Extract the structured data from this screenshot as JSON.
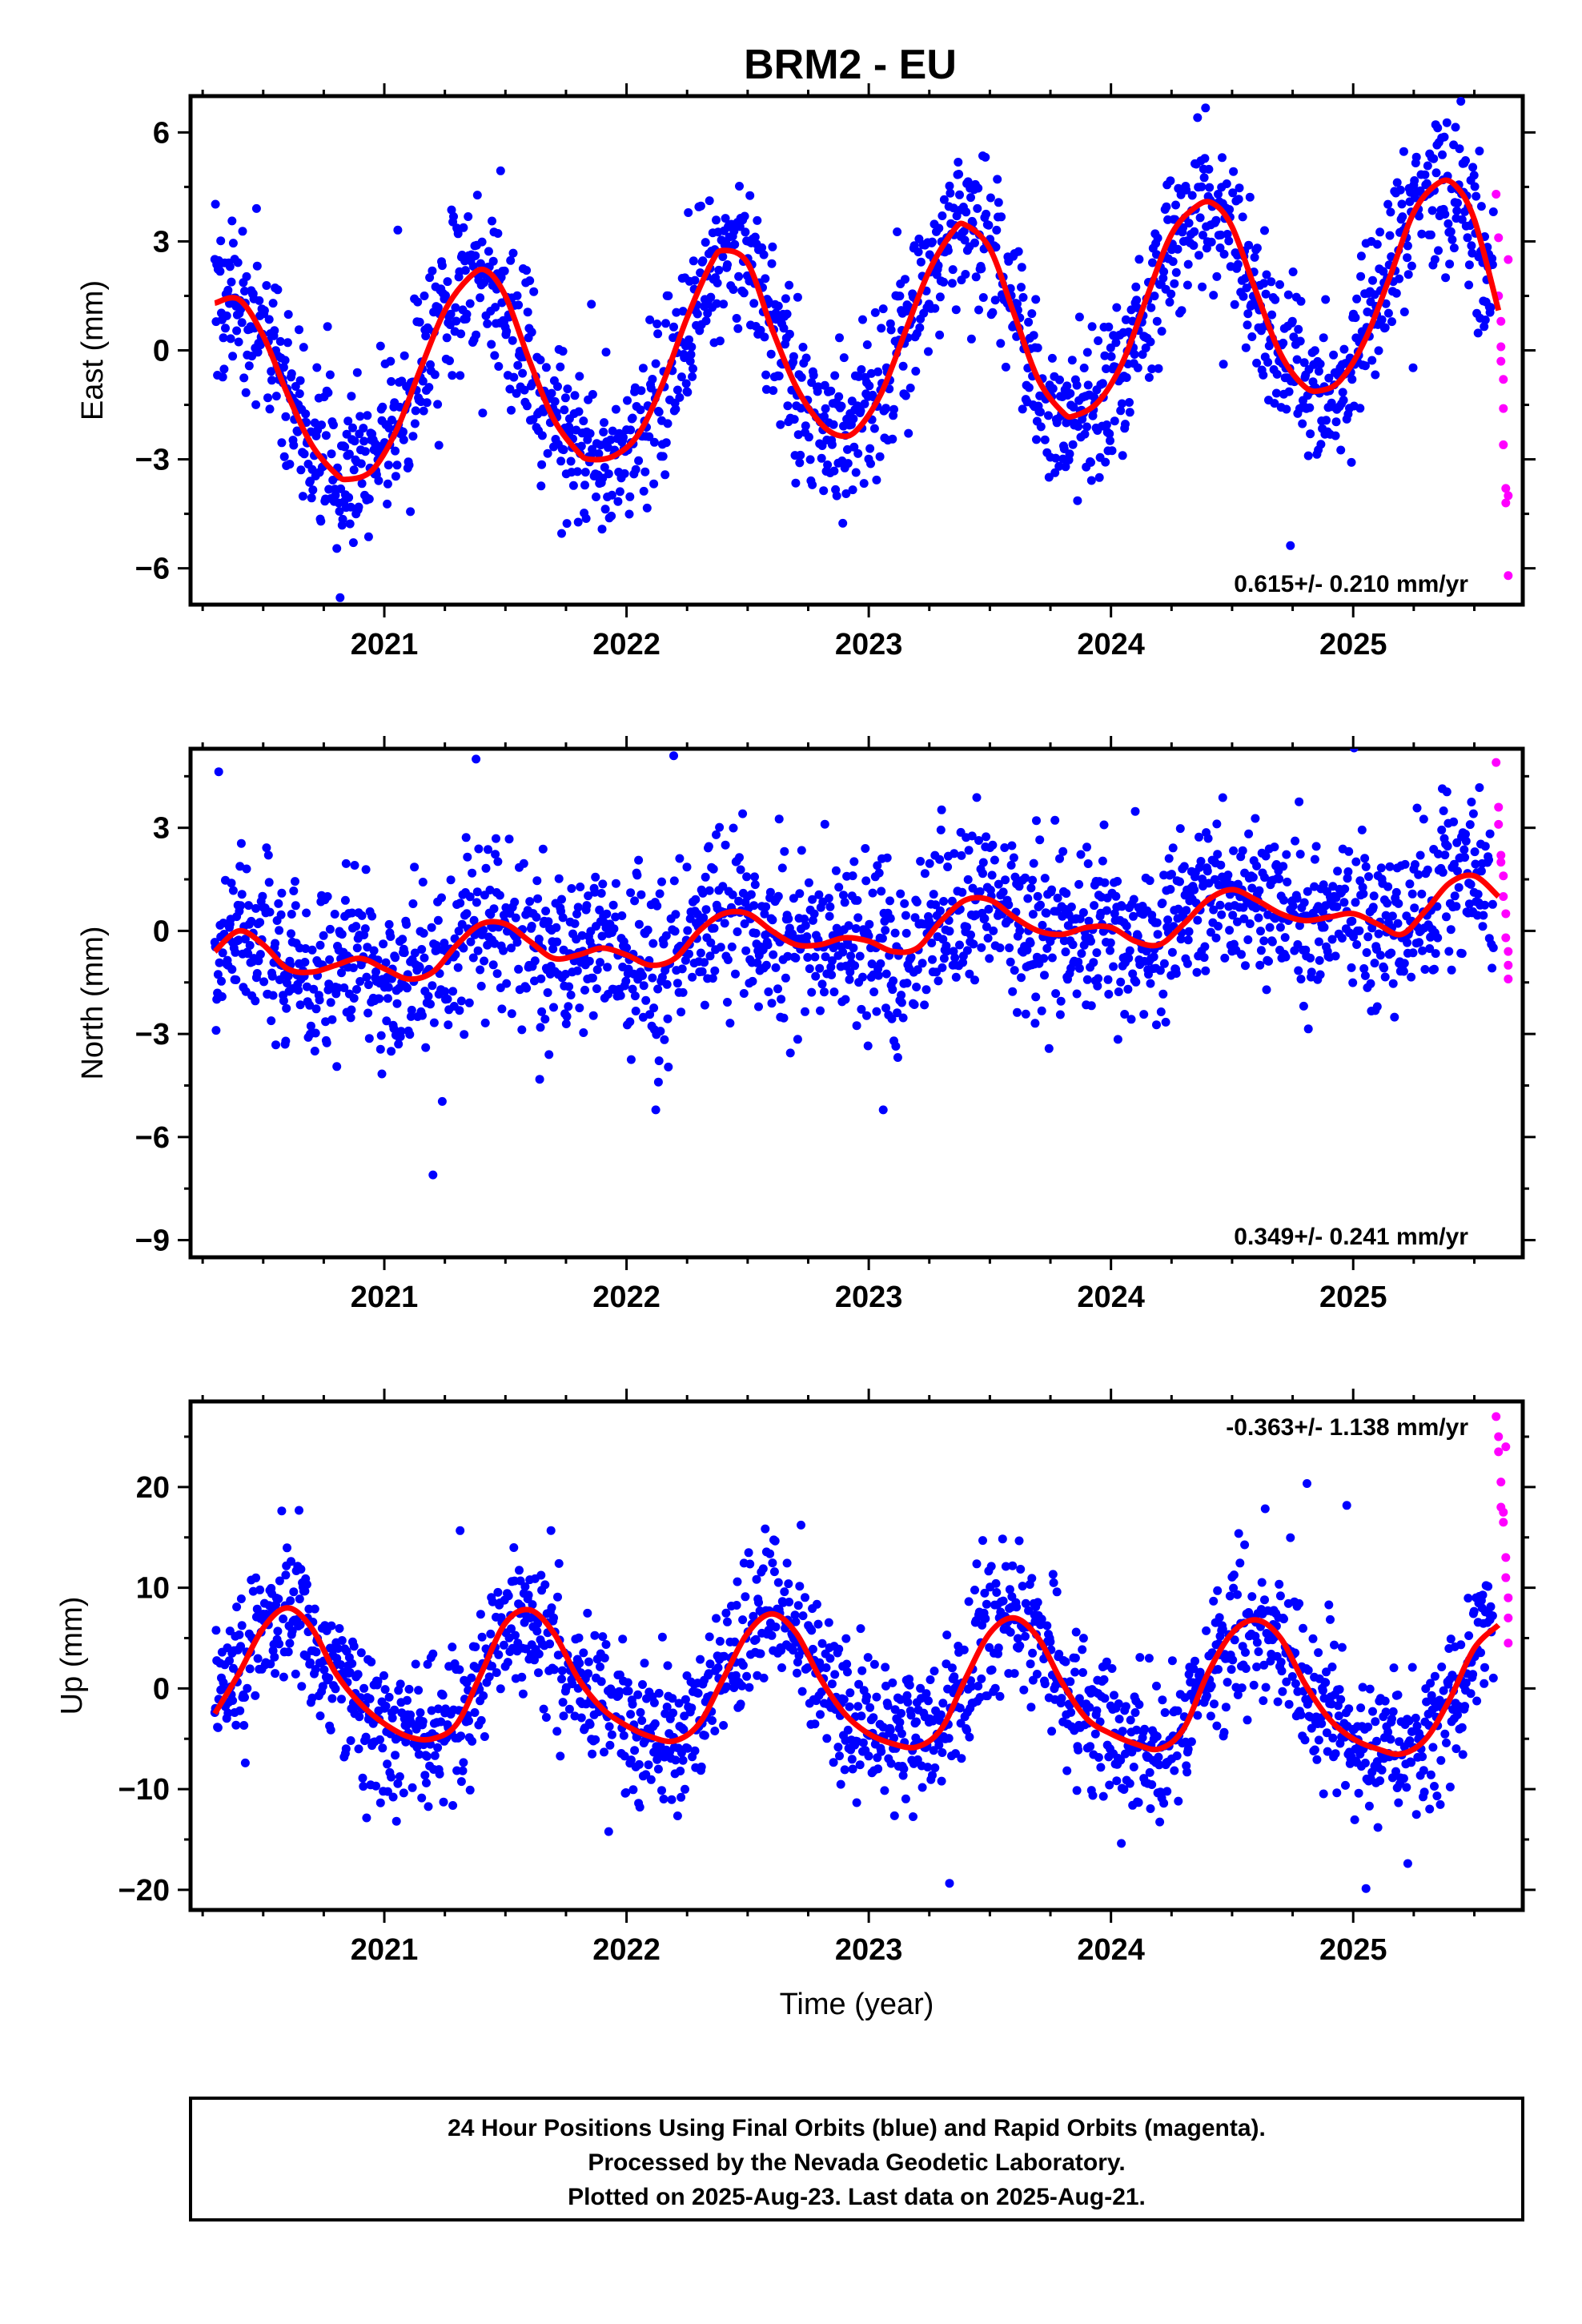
{
  "title": "BRM2 - EU",
  "footer": {
    "lines": [
      "24 Hour Positions Using Final Orbits (blue) and Rapid Orbits (magenta).",
      "Processed by the Nevada Geodetic Laboratory.",
      "Plotted on 2025-Aug-23. Last data on 2025-Aug-21."
    ]
  },
  "colors": {
    "final": "#0000ff",
    "rapid": "#ff00ff",
    "model": "#ff0000",
    "frame": "#000000"
  },
  "chart_data": [
    {
      "type": "scatter",
      "ylabel": "East (mm)",
      "xlabel": "",
      "xlim": [
        2020.2,
        2025.7
      ],
      "ylim": [
        -7,
        7
      ],
      "x_ticks": [
        2021,
        2022,
        2023,
        2024,
        2025
      ],
      "x_tick_labels": [
        "2021",
        "2022",
        "2023",
        "2024",
        "2025"
      ],
      "y_ticks": [
        -6,
        -3,
        0,
        3,
        6
      ],
      "y_tick_labels": [
        "−6",
        "−3",
        "0",
        "3",
        "6"
      ],
      "rate": "0.615+/- 0.210 mm/yr",
      "rate_position": "bottom-right",
      "final_start": 2020.3,
      "final_end": 2025.58,
      "model_curve": {
        "x": [
          2020.3,
          2020.4,
          2020.5,
          2020.6,
          2020.7,
          2020.8,
          2020.85,
          2020.95,
          2021.05,
          2021.15,
          2021.25,
          2021.35,
          2021.42,
          2021.5,
          2021.6,
          2021.7,
          2021.8,
          2021.85,
          2021.95,
          2022.05,
          2022.15,
          2022.25,
          2022.35,
          2022.4,
          2022.5,
          2022.6,
          2022.7,
          2022.8,
          2022.88,
          2022.95,
          2023.05,
          2023.15,
          2023.25,
          2023.35,
          2023.4,
          2023.5,
          2023.6,
          2023.7,
          2023.8,
          2023.85,
          2023.95,
          2024.05,
          2024.15,
          2024.25,
          2024.35,
          2024.42,
          2024.5,
          2024.6,
          2024.7,
          2024.8,
          2024.87,
          2024.95,
          2025.05,
          2025.15,
          2025.25,
          2025.35,
          2025.42,
          2025.5,
          2025.6
        ],
        "y": [
          1.3,
          1.4,
          0.4,
          -1.2,
          -2.6,
          -3.4,
          -3.55,
          -3.3,
          -2.2,
          -0.5,
          1.1,
          2.0,
          2.2,
          1.5,
          -0.3,
          -1.9,
          -2.8,
          -3.0,
          -2.9,
          -2.3,
          -0.9,
          0.9,
          2.4,
          2.75,
          2.4,
          0.6,
          -1.0,
          -2.0,
          -2.35,
          -2.2,
          -1.2,
          0.5,
          2.2,
          3.3,
          3.45,
          2.8,
          1.0,
          -0.8,
          -1.7,
          -1.8,
          -1.4,
          -0.3,
          1.5,
          3.2,
          3.95,
          4.05,
          3.4,
          1.6,
          -0.1,
          -1.0,
          -1.1,
          -0.8,
          0.3,
          2.0,
          3.8,
          4.6,
          4.55,
          3.6,
          1.1
        ]
      },
      "season": {
        "amp": 3.0,
        "phase": 0.58,
        "trend": 0.615,
        "ref": 2023.0,
        "offset": -0.2,
        "noise": 1.1
      },
      "rapid_points": {
        "x": [
          2025.59,
          2025.6,
          2025.6,
          2025.61,
          2025.61,
          2025.61,
          2025.62,
          2025.62,
          2025.62,
          2025.63,
          2025.63,
          2025.64,
          2025.64,
          2025.64
        ],
        "y": [
          4.3,
          3.1,
          1.5,
          0.8,
          0.1,
          -0.3,
          -0.8,
          -1.6,
          -2.6,
          -3.8,
          -4.2,
          -4.0,
          -6.2,
          2.5
        ]
      }
    },
    {
      "type": "scatter",
      "ylabel": "North (mm)",
      "xlabel": "",
      "xlim": [
        2020.2,
        2025.7
      ],
      "ylim": [
        -9.5,
        5.3
      ],
      "x_ticks": [
        2021,
        2022,
        2023,
        2024,
        2025
      ],
      "x_tick_labels": [
        "2021",
        "2022",
        "2023",
        "2024",
        "2025"
      ],
      "y_ticks": [
        -9,
        -6,
        -3,
        0,
        3
      ],
      "y_tick_labels": [
        "−9",
        "−6",
        "−3",
        "0",
        "3"
      ],
      "rate": "0.349+/- 0.241 mm/yr",
      "rate_position": "bottom-right",
      "final_start": 2020.3,
      "final_end": 2025.58,
      "model_curve": {
        "x": [
          2020.3,
          2020.4,
          2020.5,
          2020.6,
          2020.7,
          2020.8,
          2020.9,
          2021.0,
          2021.1,
          2021.2,
          2021.3,
          2021.4,
          2021.5,
          2021.6,
          2021.7,
          2021.8,
          2021.9,
          2022.0,
          2022.1,
          2022.2,
          2022.3,
          2022.4,
          2022.5,
          2022.6,
          2022.7,
          2022.8,
          2022.9,
          2023.0,
          2023.1,
          2023.2,
          2023.3,
          2023.4,
          2023.5,
          2023.6,
          2023.7,
          2023.8,
          2023.9,
          2024.0,
          2024.1,
          2024.2,
          2024.3,
          2024.4,
          2024.5,
          2024.6,
          2024.7,
          2024.8,
          2024.9,
          2025.0,
          2025.1,
          2025.2,
          2025.3,
          2025.4,
          2025.5,
          2025.6
        ],
        "y": [
          -0.6,
          0.0,
          -0.4,
          -1.1,
          -1.2,
          -1.0,
          -0.8,
          -1.1,
          -1.4,
          -1.2,
          -0.4,
          0.2,
          0.2,
          -0.3,
          -0.8,
          -0.7,
          -0.5,
          -0.7,
          -1.0,
          -0.8,
          0.0,
          0.5,
          0.5,
          0.0,
          -0.4,
          -0.4,
          -0.2,
          -0.3,
          -0.6,
          -0.5,
          0.3,
          0.9,
          0.9,
          0.4,
          0.0,
          -0.1,
          0.1,
          0.1,
          -0.3,
          -0.4,
          0.2,
          0.9,
          1.2,
          0.9,
          0.5,
          0.3,
          0.4,
          0.5,
          0.2,
          -0.1,
          0.6,
          1.4,
          1.6,
          1.0
        ]
      },
      "season": {
        "amp": 0.7,
        "phase": 0.5,
        "trend": 0.349,
        "ref": 2023.0,
        "offset": 0.0,
        "noise": 1.2
      },
      "rapid_points": {
        "x": [
          2025.59,
          2025.6,
          2025.6,
          2025.61,
          2025.61,
          2025.62,
          2025.62,
          2025.63,
          2025.63,
          2025.64,
          2025.64,
          2025.64
        ],
        "y": [
          4.9,
          3.6,
          3.1,
          2.2,
          2.0,
          1.6,
          1.0,
          0.5,
          -0.2,
          -0.6,
          -1.0,
          -1.4
        ]
      }
    },
    {
      "type": "scatter",
      "ylabel": "Up (mm)",
      "xlabel": "Time (year)",
      "xlim": [
        2020.2,
        2025.7
      ],
      "ylim": [
        -22,
        28.5
      ],
      "x_ticks": [
        2021,
        2022,
        2023,
        2024,
        2025
      ],
      "x_tick_labels": [
        "2021",
        "2022",
        "2023",
        "2024",
        "2025"
      ],
      "y_ticks": [
        -20,
        -10,
        0,
        10,
        20
      ],
      "y_tick_labels": [
        "−20",
        "−10",
        "0",
        "10",
        "20"
      ],
      "rate": "-0.363+/- 1.138 mm/yr",
      "rate_position": "top-right",
      "final_start": 2020.3,
      "final_end": 2025.58,
      "model_curve": {
        "x": [
          2020.3,
          2020.4,
          2020.5,
          2020.6,
          2020.7,
          2020.8,
          2020.9,
          2021.0,
          2021.1,
          2021.2,
          2021.3,
          2021.4,
          2021.5,
          2021.6,
          2021.7,
          2021.8,
          2021.9,
          2022.0,
          2022.1,
          2022.2,
          2022.3,
          2022.4,
          2022.5,
          2022.6,
          2022.7,
          2022.8,
          2022.9,
          2023.0,
          2023.1,
          2023.2,
          2023.3,
          2023.4,
          2023.5,
          2023.6,
          2023.7,
          2023.8,
          2023.9,
          2024.0,
          2024.1,
          2024.2,
          2024.3,
          2024.4,
          2024.5,
          2024.6,
          2024.7,
          2024.8,
          2024.9,
          2025.0,
          2025.1,
          2025.2,
          2025.3,
          2025.4,
          2025.5,
          2025.6
        ],
        "y": [
          -2.5,
          1.5,
          6.0,
          8.0,
          6.0,
          1.5,
          -1.5,
          -3.5,
          -4.8,
          -5.0,
          -3.5,
          1.5,
          6.5,
          7.8,
          5.5,
          1.0,
          -2.0,
          -3.7,
          -4.8,
          -5.2,
          -3.5,
          1.0,
          5.5,
          7.4,
          5.5,
          1.0,
          -2.5,
          -4.5,
          -5.5,
          -5.8,
          -4.0,
          1.0,
          5.5,
          7.0,
          5.0,
          0.5,
          -3.0,
          -4.5,
          -5.5,
          -6.0,
          -4.0,
          1.5,
          5.5,
          6.8,
          5.0,
          0.5,
          -3.0,
          -5.0,
          -6.0,
          -6.5,
          -5.0,
          -1.0,
          4.0,
          6.3
        ]
      },
      "season": {
        "amp": 6.5,
        "phase": 0.37,
        "trend": -0.363,
        "ref": 2023.0,
        "offset": 0.8,
        "noise": 3.6
      },
      "rapid_points": {
        "x": [
          2025.59,
          2025.6,
          2025.6,
          2025.61,
          2025.61,
          2025.62,
          2025.62,
          2025.63,
          2025.63,
          2025.64,
          2025.64,
          2025.64,
          2025.63
        ],
        "y": [
          27.0,
          25.0,
          23.5,
          20.5,
          18.0,
          17.5,
          16.5,
          13.0,
          11.0,
          9.0,
          7.0,
          4.5,
          24.0
        ]
      }
    }
  ]
}
